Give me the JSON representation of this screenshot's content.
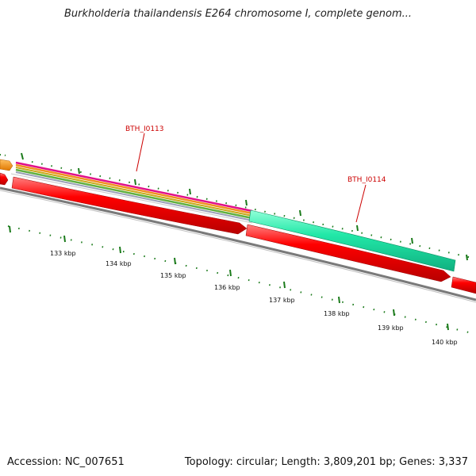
{
  "title": "Burkholderia thailandensis E264 chromosome I, complete genom...",
  "footer": {
    "accession": "Accession: NC_007651",
    "summary": "Topology: circular; Length: 3,809,201 bp; Genes: 3,337"
  },
  "gene_labels": [
    "BTH_I0113",
    "BTH_I0114"
  ],
  "kbp_labels": [
    "133 kbp",
    "134 kbp",
    "135 kbp",
    "136 kbp",
    "137 kbp",
    "138 kbp",
    "139 kbp",
    "140 kbp"
  ],
  "colors": {
    "cds_forward": "#ff0000",
    "gene_feature": "#22e8a8",
    "orange_feature": "#f08a00",
    "backbone": "#808080",
    "ticks": "#1a7a1a",
    "label": "#cc0000"
  }
}
